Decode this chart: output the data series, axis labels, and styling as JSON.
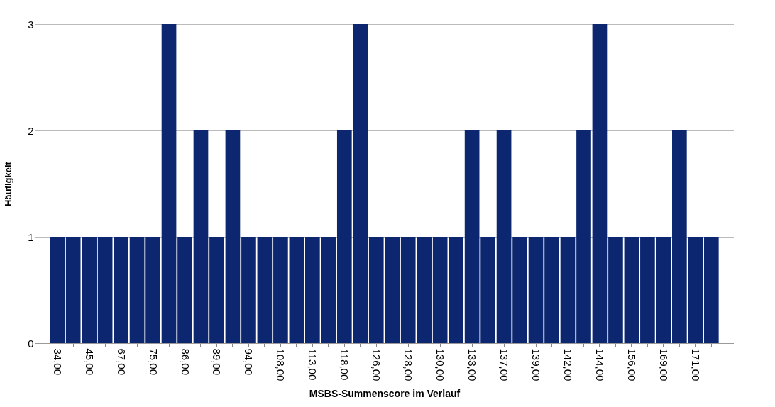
{
  "chart_data": {
    "type": "bar",
    "xlabel": "MSBS-Summenscore im Verlauf",
    "ylabel": "Häufigkeit",
    "categories": [
      "34,00",
      null,
      "45,00",
      null,
      "67,00",
      null,
      "75,00",
      null,
      "86,00",
      null,
      "89,00",
      null,
      "94,00",
      null,
      "108,00",
      null,
      "113,00",
      null,
      "118,00",
      null,
      "126,00",
      null,
      "128,00",
      null,
      "130,00",
      null,
      "133,00",
      null,
      "137,00",
      null,
      "139,00",
      null,
      "142,00",
      null,
      "144,00",
      null,
      "156,00",
      null,
      "169,00",
      null,
      "171,00",
      null
    ],
    "values": [
      1,
      1,
      1,
      1,
      1,
      1,
      1,
      3,
      1,
      2,
      1,
      2,
      1,
      1,
      1,
      1,
      1,
      1,
      2,
      3,
      1,
      1,
      1,
      1,
      1,
      1,
      2,
      1,
      2,
      1,
      1,
      1,
      1,
      2,
      3,
      1,
      1,
      1,
      1,
      2,
      1,
      1
    ],
    "color": "#0c2670",
    "ylim": [
      0,
      3
    ],
    "yticks": [
      0,
      1,
      2,
      3
    ],
    "grid": "y"
  }
}
